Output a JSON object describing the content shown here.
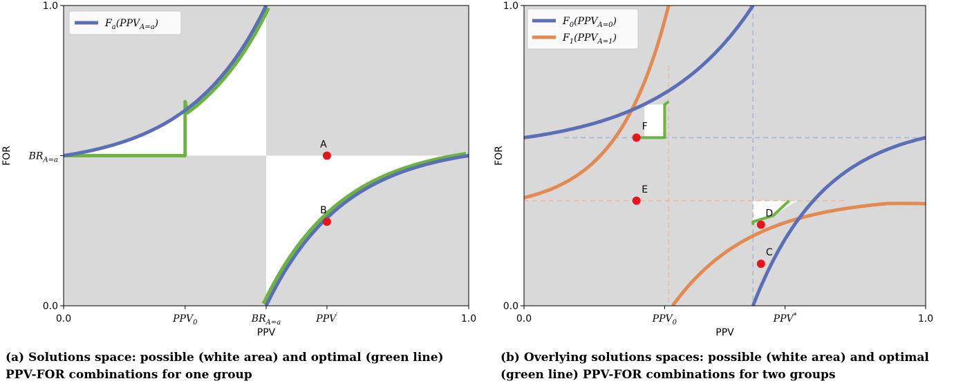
{
  "chart_data": [
    {
      "type": "line",
      "xlabel": "PPV",
      "ylabel": "FOR",
      "xlim": [
        0,
        1
      ],
      "ylim": [
        0,
        1
      ],
      "x_ticks": [
        {
          "value": 0.0,
          "label": "0.0",
          "math": false
        },
        {
          "value": 0.3,
          "label": "PPV₀",
          "math": true
        },
        {
          "value": 0.5,
          "label": "BRₐ₌ₐ",
          "math": true
        },
        {
          "value": 0.65,
          "label": "PPV′",
          "math": true
        },
        {
          "value": 1.0,
          "label": "1.0",
          "math": false
        }
      ],
      "y_ticks": [
        {
          "value": 0.0,
          "label": "0.0",
          "math": false
        },
        {
          "value": 0.5,
          "label": "BRₐ₌ₐ",
          "math": true
        },
        {
          "value": 1.0,
          "label": "1.0",
          "math": false
        }
      ],
      "background": "#d9d9d9",
      "grid": false,
      "legend_position": "top-left",
      "series": [
        {
          "name": "Fₐ(PPVₐ₌ₐ)",
          "color": "#5b6fb6",
          "kind": "hyperbola",
          "br": 0.5,
          "ppv_k": 0.3,
          "for_k": 0.55
        }
      ],
      "optimal_line": {
        "color": "#6db33f",
        "points_left": [
          [
            0.0,
            0.5
          ],
          [
            0.3,
            0.5
          ],
          [
            0.3,
            0.68
          ]
        ],
        "follows_curve": true
      },
      "white_region": "feasible",
      "points": [
        {
          "label": "A",
          "x": 0.65,
          "y": 0.5
        },
        {
          "label": "B",
          "x": 0.65,
          "y": 0.28
        }
      ],
      "caption": "(a) Solutions space: possible (white area) and optimal (green line) PPV-FOR combinations for one group"
    },
    {
      "type": "line",
      "xlabel": "PPV",
      "ylabel": "FOR",
      "xlim": [
        0,
        1
      ],
      "ylim": [
        0,
        1
      ],
      "x_ticks": [
        {
          "value": 0.0,
          "label": "0.0",
          "math": false
        },
        {
          "value": 0.35,
          "label": "PPV₀",
          "math": true
        },
        {
          "value": 0.65,
          "label": "PPV*",
          "math": true
        },
        {
          "value": 1.0,
          "label": "1.0",
          "math": false
        }
      ],
      "y_ticks": [
        {
          "value": 0.0,
          "label": "0.0",
          "math": false
        },
        {
          "value": 1.0,
          "label": "1.0",
          "math": false
        }
      ],
      "background": "#d9d9d9",
      "grid": false,
      "legend_position": "top-left",
      "series": [
        {
          "name": "F₀(PPVₐ₌₀)",
          "color": "#5b6fb6",
          "br": 0.55
        },
        {
          "name": "F₁(PPVₐ₌₁)",
          "color": "#e38a52",
          "br": 0.35
        }
      ],
      "points": [
        {
          "label": "F",
          "x": 0.28,
          "y": 0.56
        },
        {
          "label": "E",
          "x": 0.28,
          "y": 0.35
        },
        {
          "label": "D",
          "x": 0.59,
          "y": 0.27
        },
        {
          "label": "C",
          "x": 0.59,
          "y": 0.14
        }
      ],
      "caption": "(b) Overlying solutions spaces: possible (white area) and optimal (green line) PPV-FOR combinations for two groups"
    }
  ]
}
